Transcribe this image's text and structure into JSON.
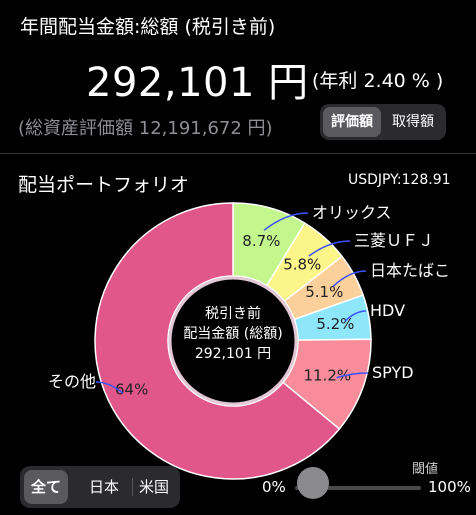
{
  "header": {
    "title": "年間配当金額:総額 (税引き前)",
    "amount": "292,101 円",
    "yield": "(年利 2.40 % )",
    "total_assets": "(総資産評価額 12,191,672 円)",
    "toggle": {
      "options": [
        "評価額",
        "取得額"
      ],
      "selected": "評価額"
    }
  },
  "portfolio": {
    "title": "配当ポートフォリオ",
    "fx_rate": "USDJPY:128.91",
    "center": {
      "line1": "税引き前",
      "line2": "配当金額 (総額)",
      "line3": "292,101 円"
    }
  },
  "chart_data": {
    "type": "pie",
    "style": "donut",
    "slices": [
      {
        "name": "オリックス",
        "value": 8.7,
        "label": "8.7%",
        "color": "#c3f78e"
      },
      {
        "name": "三菱ＵＦＪ",
        "value": 5.8,
        "label": "5.8%",
        "color": "#fbf58a"
      },
      {
        "name": "日本たばこ",
        "value": 5.1,
        "label": "5.1%",
        "color": "#fcd09a"
      },
      {
        "name": "HDV",
        "value": 5.2,
        "label": "5.2%",
        "color": "#8ee6fb"
      },
      {
        "name": "SPYD",
        "value": 11.2,
        "label": "11.2%",
        "color": "#f98c9a"
      },
      {
        "name": "その他",
        "value": 64.0,
        "label": "64%",
        "color": "#e1578a"
      }
    ],
    "callout_line_color": "#3d52ff"
  },
  "filter": {
    "options": [
      "全て",
      "日本",
      "米国"
    ],
    "selected": "全て"
  },
  "threshold": {
    "label": "閾値",
    "min_label": "0%",
    "max_label": "100%",
    "value": 0.0
  }
}
